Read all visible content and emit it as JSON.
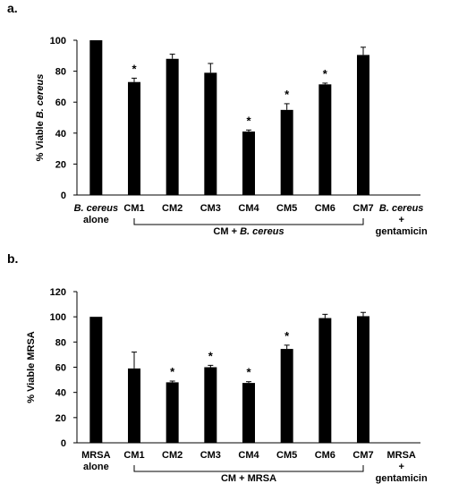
{
  "panels": [
    {
      "panel_label": "a.",
      "group_label_parts": [
        "CM + ",
        "B. cereus"
      ],
      "ylabel_parts": [
        "% Viable ",
        "B. cereus"
      ],
      "ytick_labels": [
        "0",
        "20",
        "40",
        "60",
        "80",
        "100"
      ],
      "tick_labels": [
        {
          "lines": [
            {
              "text": "B. cereus",
              "italic": true
            },
            {
              "text": "alone",
              "italic": false
            }
          ]
        },
        {
          "lines": [
            {
              "text": "CM1",
              "italic": false
            }
          ]
        },
        {
          "lines": [
            {
              "text": "CM2",
              "italic": false
            }
          ]
        },
        {
          "lines": [
            {
              "text": "CM3",
              "italic": false
            }
          ]
        },
        {
          "lines": [
            {
              "text": "CM4",
              "italic": false
            }
          ]
        },
        {
          "lines": [
            {
              "text": "CM5",
              "italic": false
            }
          ]
        },
        {
          "lines": [
            {
              "text": "CM6",
              "italic": false
            }
          ]
        },
        {
          "lines": [
            {
              "text": "CM7",
              "italic": false
            }
          ]
        },
        {
          "lines": [
            {
              "text": "B. cereus",
              "italic": true
            },
            {
              "text": "+",
              "italic": false
            },
            {
              "text": "gentamicin",
              "italic": false
            }
          ]
        }
      ]
    },
    {
      "panel_label": "b.",
      "group_label_parts": [
        "CM + MRSA"
      ],
      "ylabel_parts": [
        "% Viable MRSA"
      ],
      "ytick_labels": [
        "0",
        "20",
        "40",
        "60",
        "80",
        "100",
        "120"
      ],
      "tick_labels": [
        {
          "lines": [
            {
              "text": "MRSA",
              "italic": false
            },
            {
              "text": "alone",
              "italic": false
            }
          ]
        },
        {
          "lines": [
            {
              "text": "CM1",
              "italic": false
            }
          ]
        },
        {
          "lines": [
            {
              "text": "CM2",
              "italic": false
            }
          ]
        },
        {
          "lines": [
            {
              "text": "CM3",
              "italic": false
            }
          ]
        },
        {
          "lines": [
            {
              "text": "CM4",
              "italic": false
            }
          ]
        },
        {
          "lines": [
            {
              "text": "CM5",
              "italic": false
            }
          ]
        },
        {
          "lines": [
            {
              "text": "CM6",
              "italic": false
            }
          ]
        },
        {
          "lines": [
            {
              "text": "CM7",
              "italic": false
            }
          ]
        },
        {
          "lines": [
            {
              "text": "MRSA",
              "italic": false
            },
            {
              "text": "+",
              "italic": false
            },
            {
              "text": "gentamicin",
              "italic": false
            }
          ]
        }
      ]
    }
  ],
  "chart_data": [
    {
      "type": "bar",
      "categories": [
        "B. cereus alone",
        "CM1",
        "CM2",
        "CM3",
        "CM4",
        "CM5",
        "CM6",
        "CM7",
        "B. cereus + gentamicin"
      ],
      "values": [
        100,
        73,
        88,
        79,
        41,
        55,
        71.5,
        90.5,
        0
      ],
      "errors": [
        0,
        2.5,
        3,
        6,
        1,
        4,
        0.8,
        5,
        0
      ],
      "significant": [
        false,
        true,
        false,
        false,
        true,
        true,
        true,
        false,
        false
      ],
      "significance_marker": "*",
      "ylabel": "% Viable B. cereus",
      "ylim": [
        0,
        100
      ],
      "bar_color": "#000000",
      "grid": false
    },
    {
      "type": "bar",
      "categories": [
        "MRSA alone",
        "CM1",
        "CM2",
        "CM3",
        "CM4",
        "CM5",
        "CM6",
        "CM7",
        "MRSA + gentamicin"
      ],
      "values": [
        100,
        59,
        48,
        60,
        47.5,
        74.5,
        99,
        100.5,
        0
      ],
      "errors": [
        0,
        13,
        1,
        1.5,
        1,
        3,
        3,
        3,
        0
      ],
      "significant": [
        false,
        false,
        true,
        true,
        true,
        true,
        false,
        false,
        false
      ],
      "significance_marker": "*",
      "ylabel": "% Viable MRSA",
      "ylim": [
        0,
        120
      ],
      "bar_color": "#000000",
      "grid": false
    }
  ]
}
